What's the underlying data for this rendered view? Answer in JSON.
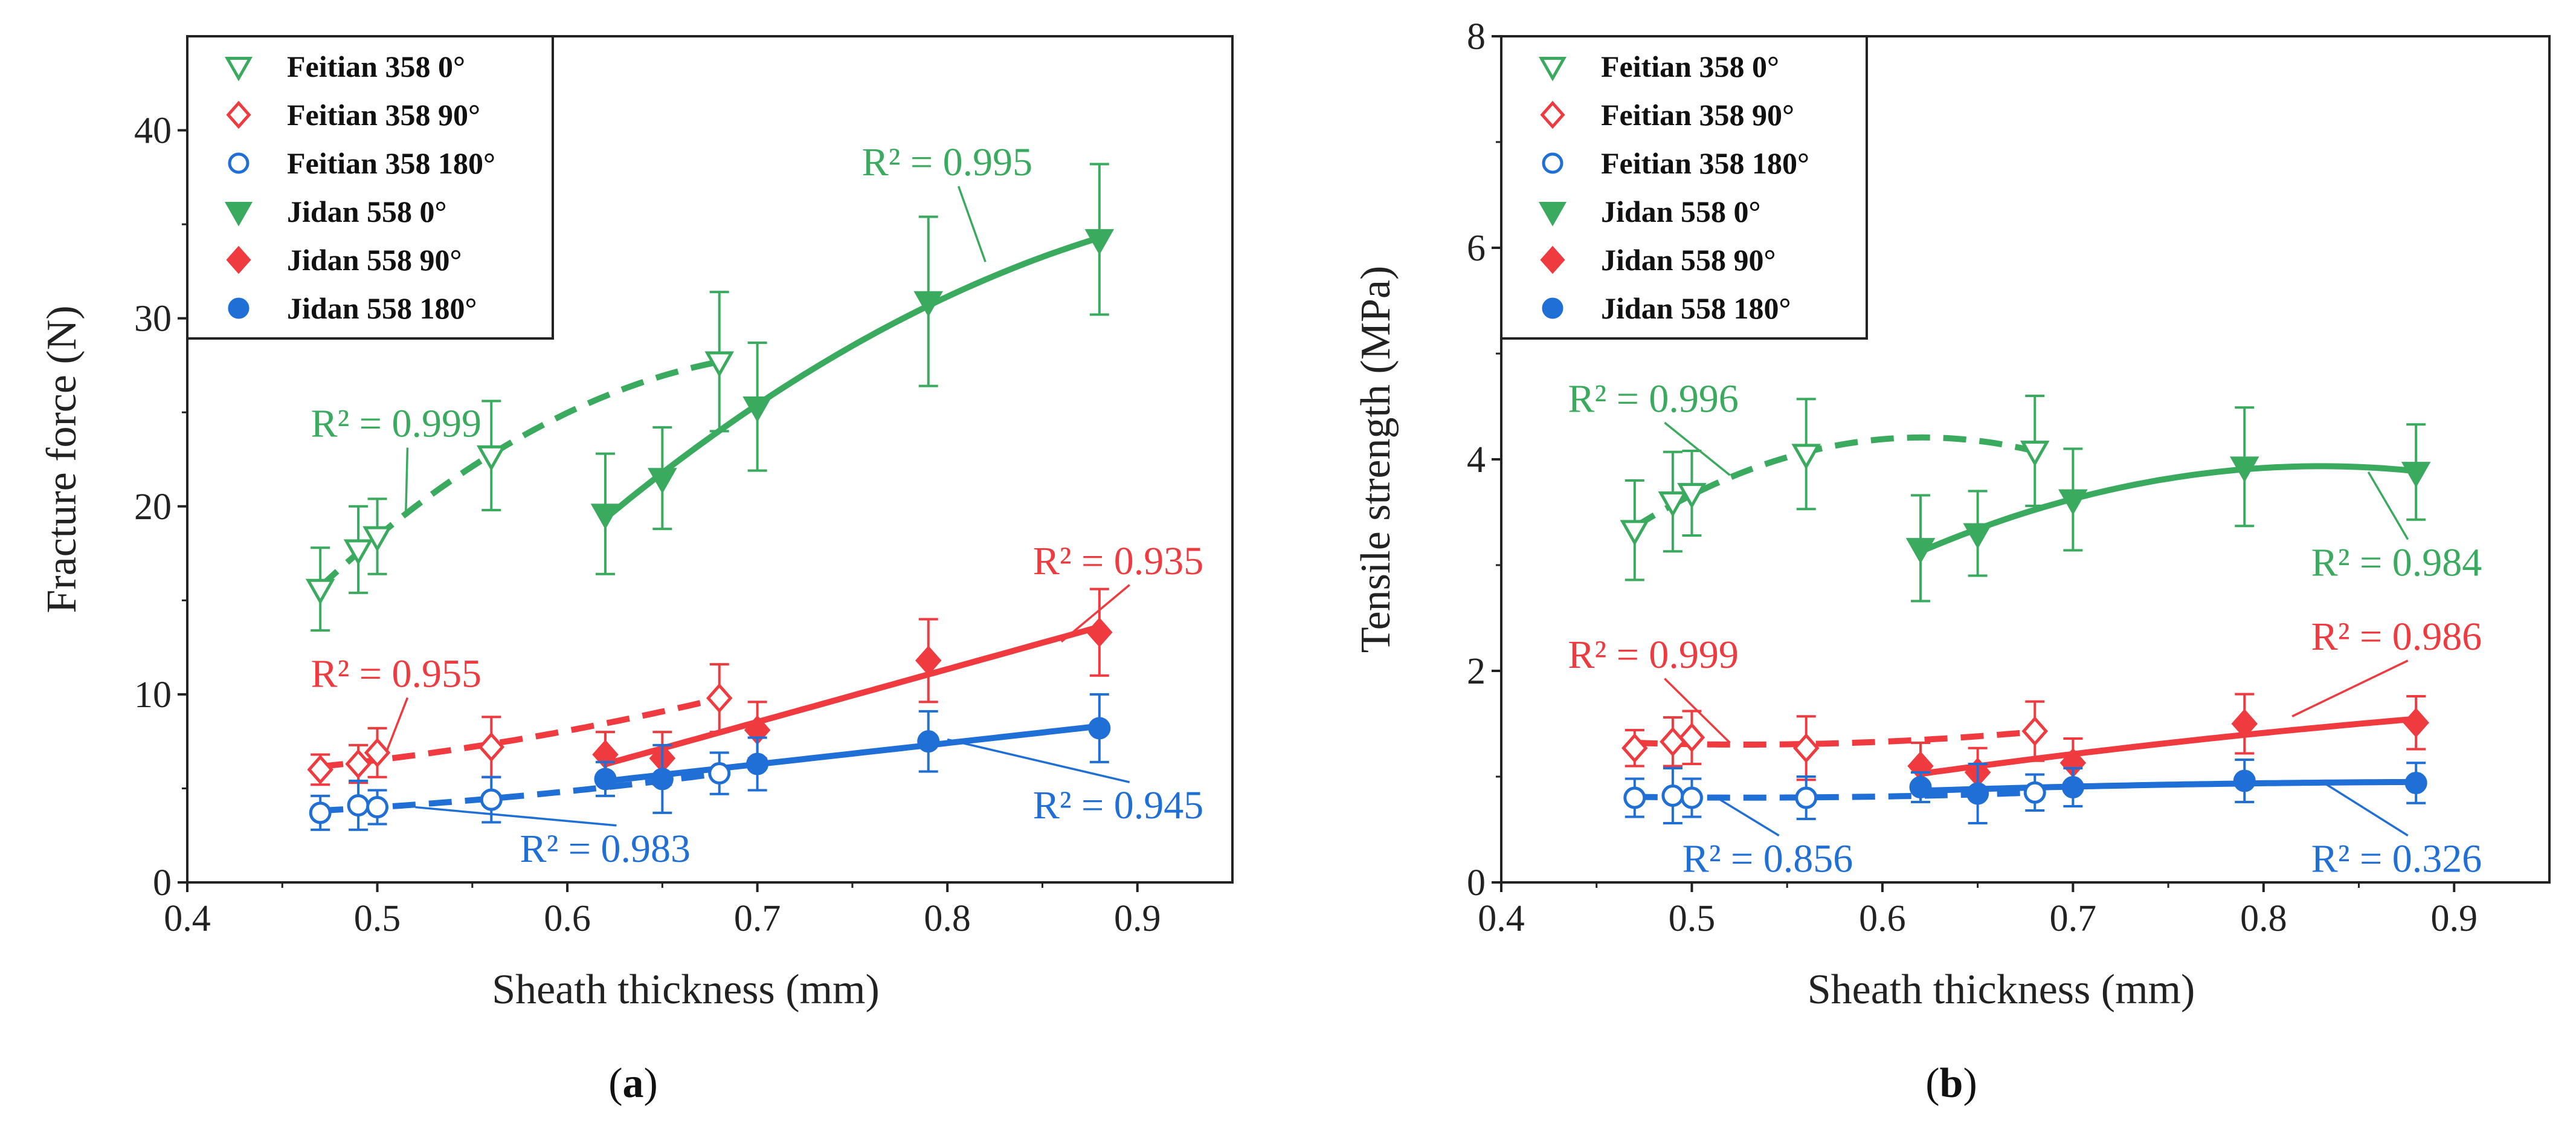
{
  "colors": {
    "green": "#3aaa5e",
    "red": "#ef3b3f",
    "blue": "#1f6fd6",
    "axis": "#222222"
  },
  "series_meta": [
    {
      "key": "f0",
      "name": "Feitian 358  0°",
      "color": "green",
      "marker": "tri-down",
      "filled": false,
      "dash": true
    },
    {
      "key": "f90",
      "name": "Feitian 358  90°",
      "color": "red",
      "marker": "diamond",
      "filled": false,
      "dash": true
    },
    {
      "key": "f180",
      "name": "Feitian 358  180°",
      "color": "blue",
      "marker": "circle",
      "filled": false,
      "dash": true
    },
    {
      "key": "j0",
      "name": "Jidan 558  0°",
      "color": "green",
      "marker": "tri-down",
      "filled": true,
      "dash": false
    },
    {
      "key": "j90",
      "name": "Jidan 558  90°",
      "color": "red",
      "marker": "diamond",
      "filled": true,
      "dash": false
    },
    {
      "key": "j180",
      "name": "Jidan 558  180°",
      "color": "blue",
      "marker": "circle",
      "filled": true,
      "dash": false
    }
  ],
  "chart_data": [
    {
      "panel": "a",
      "type": "scatter",
      "xlabel": "Sheath thickness (mm)",
      "ylabel": "Fracture force (N)",
      "xlim": [
        0.4,
        0.95
      ],
      "ylim": [
        0,
        45
      ],
      "xticks": [
        "0.4",
        "0.5",
        "0.6",
        "0.7",
        "0.8",
        "0.9"
      ],
      "yticks": [
        "0",
        "10",
        "20",
        "30",
        "40"
      ],
      "series": {
        "f0": {
          "x": [
            0.47,
            0.49,
            0.5,
            0.56,
            0.68
          ],
          "y": [
            15.6,
            17.7,
            18.4,
            22.7,
            27.7
          ],
          "err": [
            2.2,
            2.3,
            2.0,
            2.9,
            3.7
          ],
          "fit": "quad"
        },
        "f90": {
          "x": [
            0.47,
            0.49,
            0.5,
            0.56,
            0.68
          ],
          "y": [
            6.0,
            6.3,
            6.9,
            7.2,
            9.8
          ],
          "err": [
            0.8,
            1.0,
            1.3,
            1.6,
            1.8
          ],
          "fit": "quad"
        },
        "f180": {
          "x": [
            0.47,
            0.49,
            0.5,
            0.56,
            0.68
          ],
          "y": [
            3.7,
            4.1,
            4.0,
            4.4,
            5.8
          ],
          "err": [
            0.9,
            1.3,
            0.9,
            1.2,
            1.1
          ],
          "fit": "quad"
        },
        "j0": {
          "x": [
            0.62,
            0.65,
            0.7,
            0.79,
            0.88
          ],
          "y": [
            19.6,
            21.5,
            25.3,
            30.9,
            34.2
          ],
          "err": [
            3.2,
            2.7,
            3.4,
            4.5,
            4.0
          ],
          "fit": "quad"
        },
        "j90": {
          "x": [
            0.62,
            0.65,
            0.7,
            0.79,
            0.88
          ],
          "y": [
            6.8,
            6.6,
            8.1,
            11.8,
            13.3
          ],
          "err": [
            1.2,
            1.4,
            1.5,
            2.2,
            2.3
          ],
          "fit": "linear"
        },
        "j180": {
          "x": [
            0.62,
            0.65,
            0.7,
            0.79,
            0.88
          ],
          "y": [
            5.5,
            5.5,
            6.3,
            7.5,
            8.2
          ],
          "err": [
            0.9,
            1.8,
            1.4,
            1.6,
            1.8
          ],
          "fit": "linear"
        }
      },
      "annotations": [
        {
          "series": "f0",
          "text": "R² = 0.999",
          "label_x": 0.465,
          "label_y": 23.7,
          "point_x": 0.515,
          "point_y": 19.6
        },
        {
          "series": "j0",
          "text": "R² = 0.995",
          "label_x": 0.755,
          "label_y": 37.6,
          "point_x": 0.82,
          "point_y": 33.0
        },
        {
          "series": "f90",
          "text": "R² = 0.955",
          "label_x": 0.465,
          "label_y": 10.4,
          "point_x": 0.505,
          "point_y": 7.0
        },
        {
          "series": "j90",
          "text": "R² = 0.935",
          "label_x": 0.845,
          "label_y": 16.4,
          "point_x": 0.86,
          "point_y": 12.8
        },
        {
          "series": "j180",
          "text": "R² = 0.945",
          "label_x": 0.845,
          "label_y": 3.4,
          "point_x": 0.8,
          "point_y": 7.6
        },
        {
          "series": "f180",
          "text": "R² = 0.983",
          "label_x": 0.575,
          "label_y": 1.1,
          "point_x": 0.52,
          "point_y": 4.0
        }
      ]
    },
    {
      "panel": "b",
      "type": "scatter",
      "xlabel": "Sheath thickness (mm)",
      "ylabel": "Tensile strength (MPa)",
      "xlim": [
        0.4,
        0.95
      ],
      "ylim": [
        0,
        8
      ],
      "xticks": [
        "0.4",
        "0.5",
        "0.6",
        "0.7",
        "0.8",
        "0.9"
      ],
      "yticks": [
        "0",
        "2",
        "4",
        "6",
        "8"
      ],
      "series": {
        "f0": {
          "x": [
            0.47,
            0.49,
            0.5,
            0.56,
            0.68
          ],
          "y": [
            3.33,
            3.6,
            3.68,
            4.05,
            4.08
          ],
          "err": [
            0.47,
            0.47,
            0.4,
            0.52,
            0.52
          ],
          "fit": "quad"
        },
        "f90": {
          "x": [
            0.47,
            0.49,
            0.5,
            0.56,
            0.68
          ],
          "y": [
            1.27,
            1.33,
            1.37,
            1.27,
            1.43
          ],
          "err": [
            0.17,
            0.23,
            0.25,
            0.3,
            0.28
          ],
          "fit": "quad"
        },
        "f180": {
          "x": [
            0.47,
            0.49,
            0.5,
            0.56,
            0.68
          ],
          "y": [
            0.8,
            0.82,
            0.8,
            0.8,
            0.85
          ],
          "err": [
            0.18,
            0.26,
            0.18,
            0.2,
            0.17
          ],
          "fit": "quad"
        },
        "j0": {
          "x": [
            0.62,
            0.65,
            0.7,
            0.79,
            0.88
          ],
          "y": [
            3.16,
            3.3,
            3.62,
            3.93,
            3.88
          ],
          "err": [
            0.5,
            0.4,
            0.48,
            0.56,
            0.45
          ],
          "fit": "quad"
        },
        "j90": {
          "x": [
            0.62,
            0.65,
            0.7,
            0.79,
            0.88
          ],
          "y": [
            1.1,
            1.04,
            1.13,
            1.5,
            1.51
          ],
          "err": [
            0.22,
            0.23,
            0.23,
            0.28,
            0.25
          ],
          "fit": "quad"
        },
        "j180": {
          "x": [
            0.62,
            0.65,
            0.7,
            0.79,
            0.88
          ],
          "y": [
            0.9,
            0.84,
            0.9,
            0.96,
            0.94
          ],
          "err": [
            0.14,
            0.28,
            0.18,
            0.2,
            0.19
          ],
          "fit": "quad"
        }
      },
      "annotations": [
        {
          "series": "f0",
          "text": "R² = 0.996",
          "label_x": 0.435,
          "label_y": 4.45,
          "point_x": 0.52,
          "point_y": 3.85
        },
        {
          "series": "j0",
          "text": "R² = 0.984",
          "label_x": 0.825,
          "label_y": 2.9,
          "point_x": 0.855,
          "point_y": 3.88
        },
        {
          "series": "f90",
          "text": "R² = 0.999",
          "label_x": 0.435,
          "label_y": 2.03,
          "point_x": 0.52,
          "point_y": 1.32
        },
        {
          "series": "j90",
          "text": "R² = 0.986",
          "label_x": 0.825,
          "label_y": 2.2,
          "point_x": 0.815,
          "point_y": 1.57
        },
        {
          "series": "j180",
          "text": "R² = 0.326",
          "label_x": 0.825,
          "label_y": 0.1,
          "point_x": 0.83,
          "point_y": 0.96
        },
        {
          "series": "f180",
          "text": "R² = 0.856",
          "label_x": 0.495,
          "label_y": 0.1,
          "point_x": 0.515,
          "point_y": 0.78
        }
      ]
    }
  ],
  "panel_labels": [
    "(a)",
    "(b)"
  ]
}
